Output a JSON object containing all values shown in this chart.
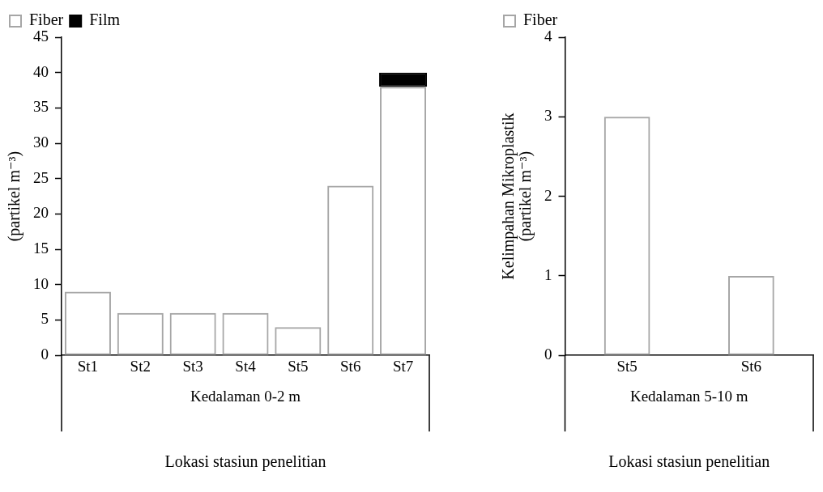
{
  "chart_data": [
    {
      "type": "bar",
      "stacked": true,
      "categories": [
        "St1",
        "St2",
        "St3",
        "St4",
        "St5",
        "St6",
        "St7"
      ],
      "series": [
        {
          "name": "Fiber",
          "color": "#a6a6a6",
          "values": [
            9,
            6,
            6,
            6,
            4,
            24,
            38
          ]
        },
        {
          "name": "Film",
          "color": "#000000",
          "values": [
            null,
            null,
            null,
            null,
            null,
            null,
            2
          ]
        }
      ],
      "ylabel": "(partikel m⁻³)",
      "xlabel": "Lokasi stasiun penelitian",
      "annotations": [
        "Kedalaman 0-2 m"
      ],
      "ylim": [
        0,
        45
      ],
      "yticks": [
        0,
        5,
        10,
        15,
        20,
        25,
        30,
        35,
        40,
        45
      ],
      "grid": false,
      "legend": "top left"
    },
    {
      "type": "bar",
      "categories": [
        "St5",
        "St6"
      ],
      "series": [
        {
          "name": "Fiber",
          "color": "#a6a6a6",
          "values": [
            3,
            1
          ]
        }
      ],
      "ylabel": "Kelimpahan Mikroplastik\n(partikel m⁻³)",
      "xlabel": "Lokasi stasiun penelitian",
      "annotations": [
        "Kedalaman 5-10 m"
      ],
      "ylim": [
        0,
        4
      ],
      "yticks": [
        0,
        1,
        2,
        3,
        4
      ],
      "grid": false,
      "legend": "top left"
    }
  ]
}
